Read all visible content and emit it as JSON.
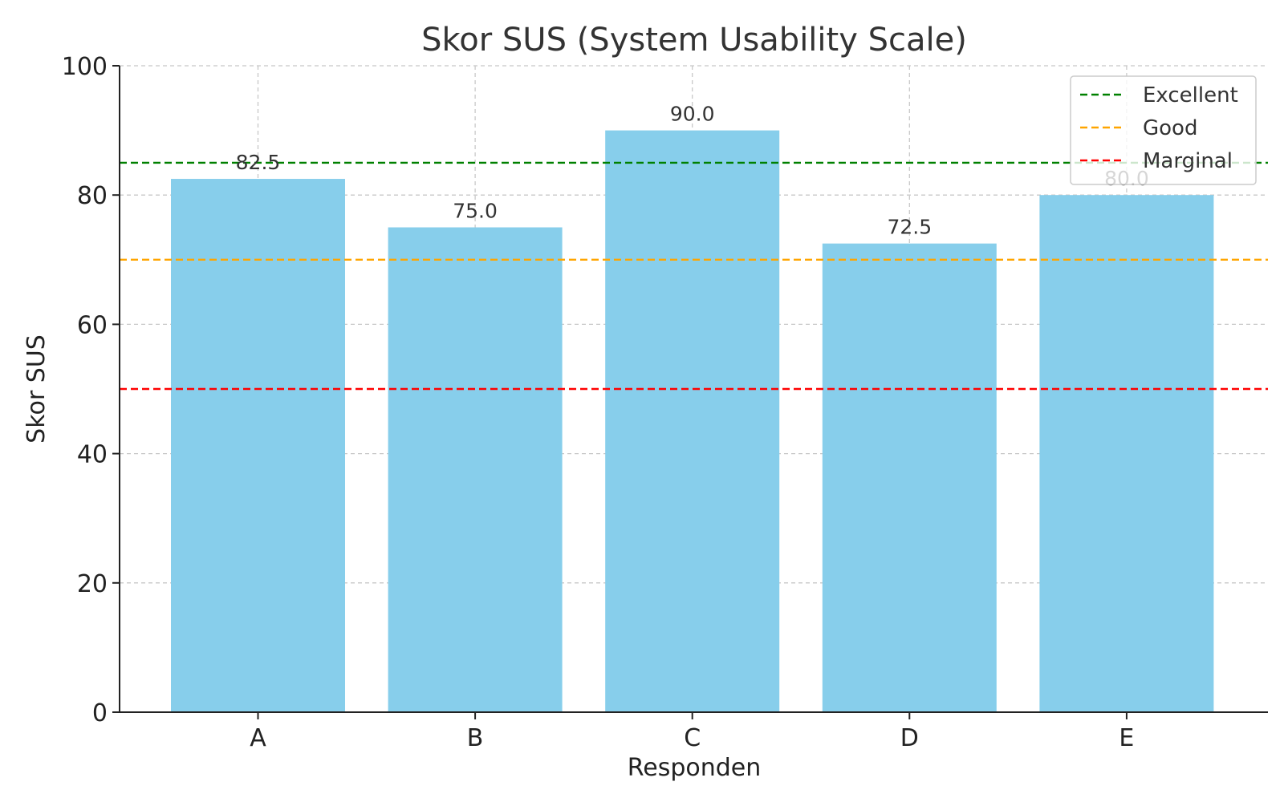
{
  "chart_data": {
    "type": "bar",
    "title": "Skor SUS (System Usability Scale)",
    "xlabel": "Responden",
    "ylabel": "Skor SUS",
    "categories": [
      "A",
      "B",
      "C",
      "D",
      "E"
    ],
    "values": [
      82.5,
      75.0,
      90.0,
      72.5,
      80.0
    ],
    "value_labels": [
      "82.5",
      "75.0",
      "90.0",
      "72.5",
      "80.0"
    ],
    "ylim": [
      0,
      100
    ],
    "yticks": [
      0,
      20,
      40,
      60,
      80,
      100
    ],
    "ytick_labels": [
      "0",
      "20",
      "40",
      "60",
      "80",
      "100"
    ],
    "bar_color": "#87CEEB",
    "grid": true,
    "legend_position": "top-right",
    "reference_lines": [
      {
        "name": "Excellent",
        "y": 85,
        "color": "#008000"
      },
      {
        "name": "Good",
        "y": 70,
        "color": "#FFA500"
      },
      {
        "name": "Marginal",
        "y": 50,
        "color": "#FF0000"
      }
    ]
  }
}
